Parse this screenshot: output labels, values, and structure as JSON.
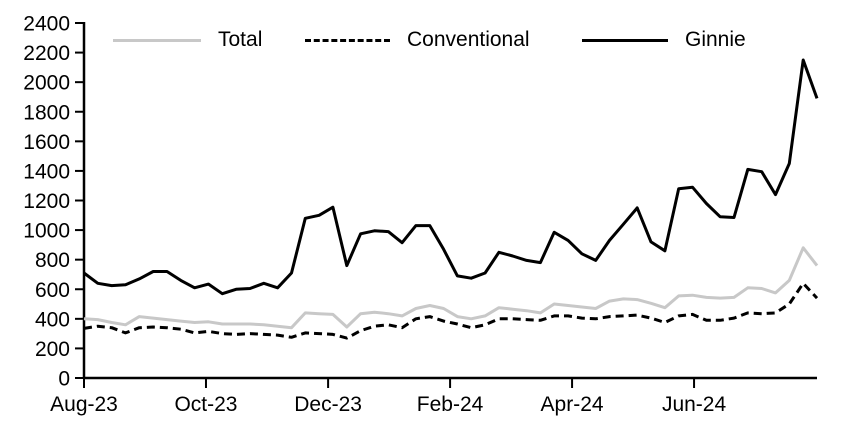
{
  "chart_data": {
    "type": "line",
    "title": "",
    "description": "Weekly time series from Aug-2023 to mid-Aug-2024 comparing Total, Conventional and Ginnie levels",
    "grid": false,
    "legend_position": "top",
    "background_color": "#ffffff",
    "y_axis": {
      "min": 0,
      "max": 2400,
      "step": 200,
      "tick_labels": [
        "0",
        "200",
        "400",
        "600",
        "800",
        "1000",
        "1200",
        "1400",
        "1600",
        "1800",
        "2000",
        "2200",
        "2400"
      ]
    },
    "x_axis": {
      "unit": "weekly points, Aug-23 through mid-Aug-24",
      "ticks": [
        {
          "label": "Aug-23",
          "pos": 0
        },
        {
          "label": "Oct-23",
          "pos": 8.82
        },
        {
          "label": "Dec-23",
          "pos": 17.65
        },
        {
          "label": "Feb-24",
          "pos": 26.47
        },
        {
          "label": "Apr-24",
          "pos": 35.29
        },
        {
          "label": "Jun-24",
          "pos": 44.11
        }
      ]
    },
    "series": [
      {
        "name": "Total",
        "color": "#c8c8c8",
        "dash": null,
        "values": [
          400,
          395,
          375,
          360,
          415,
          405,
          395,
          385,
          375,
          380,
          365,
          365,
          365,
          360,
          350,
          340,
          440,
          435,
          430,
          345,
          435,
          445,
          435,
          420,
          470,
          490,
          470,
          415,
          400,
          420,
          475,
          465,
          455,
          440,
          500,
          490,
          480,
          470,
          520,
          535,
          530,
          505,
          475,
          555,
          560,
          545,
          540,
          545,
          610,
          605,
          575,
          660,
          880,
          760
        ]
      },
      {
        "name": "Conventional",
        "color": "#000000",
        "dash": "8 5",
        "values": [
          335,
          350,
          340,
          305,
          340,
          345,
          340,
          330,
          305,
          315,
          300,
          295,
          300,
          295,
          290,
          275,
          305,
          300,
          295,
          270,
          320,
          350,
          360,
          340,
          400,
          415,
          385,
          365,
          340,
          360,
          400,
          400,
          395,
          390,
          420,
          420,
          405,
          400,
          415,
          420,
          425,
          405,
          375,
          420,
          430,
          390,
          390,
          405,
          440,
          435,
          440,
          500,
          640,
          540
        ]
      },
      {
        "name": "Ginnie",
        "color": "#000000",
        "dash": null,
        "values": [
          710,
          640,
          625,
          630,
          670,
          720,
          720,
          660,
          610,
          635,
          570,
          600,
          605,
          640,
          610,
          710,
          1080,
          1100,
          1155,
          760,
          975,
          995,
          990,
          915,
          1030,
          1030,
          870,
          690,
          675,
          710,
          850,
          825,
          795,
          780,
          985,
          930,
          840,
          795,
          930,
          1040,
          1150,
          920,
          860,
          1280,
          1290,
          1180,
          1090,
          1085,
          1410,
          1395,
          1240,
          1450,
          2150,
          1890
        ]
      }
    ]
  }
}
